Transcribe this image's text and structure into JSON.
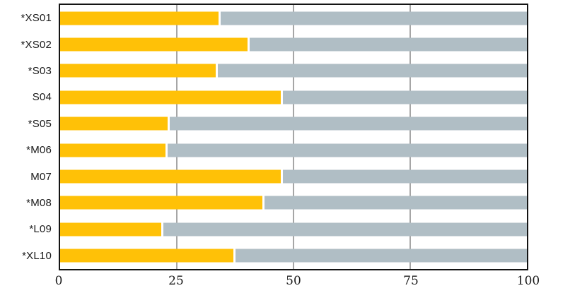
{
  "chart_data": {
    "type": "bar",
    "orientation": "horizontal",
    "stacked": true,
    "title": "",
    "xlabel": "",
    "ylabel": "",
    "categories": [
      "*XS01",
      "*XS02",
      "*S03",
      "S04",
      "*S05",
      "*M06",
      "M07",
      "*M08",
      "*L09",
      "*XL10"
    ],
    "series": [
      {
        "name": "orange-segment",
        "color": "#FFC107",
        "values": [
          34.0,
          40.2,
          33.4,
          47.3,
          23.0,
          22.6,
          47.2,
          43.3,
          21.7,
          37.1
        ]
      },
      {
        "name": "gray-segment",
        "color": "#B0BEC5",
        "values": [
          66.0,
          59.8,
          66.6,
          52.7,
          77.0,
          77.4,
          52.8,
          56.7,
          78.3,
          62.9
        ]
      }
    ],
    "total": 100,
    "xlim": [
      0,
      100
    ],
    "xticks": [
      "0",
      "25",
      "50",
      "75",
      "100"
    ],
    "xtick_values": [
      0,
      25,
      50,
      75,
      100
    ],
    "grid": "vertical",
    "gridline_color": "#a6a6a6",
    "frame_color": "#141414",
    "legend": null
  }
}
